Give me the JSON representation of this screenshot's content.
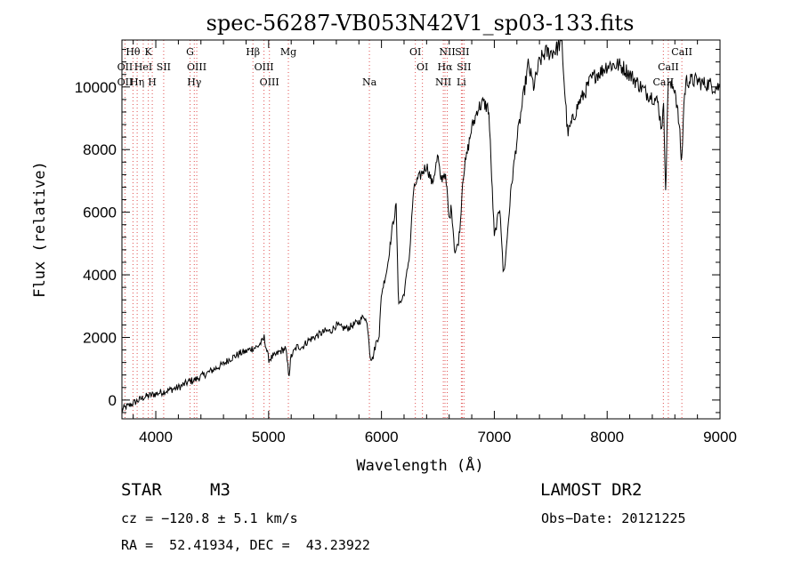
{
  "chart_data": {
    "type": "line",
    "title": "spec-56287-VB053N42V1_sp03-133.fits",
    "xlabel": "Wavelength (Å)",
    "ylabel": "Flux (relative)",
    "xlim": [
      3700,
      9000
    ],
    "ylim": [
      -600,
      11500
    ],
    "xticks": [
      4000,
      5000,
      6000,
      7000,
      8000,
      9000
    ],
    "yticks": [
      0,
      2000,
      4000,
      6000,
      8000,
      10000
    ],
    "line_color": "#000000",
    "marker_color": "#e05050",
    "series": [
      {
        "x": [
          3700,
          3750,
          3800,
          3850,
          3900,
          3950,
          4000,
          4050,
          4100,
          4150,
          4200,
          4250,
          4300,
          4350,
          4400,
          4450,
          4500,
          4550,
          4600,
          4650,
          4700,
          4750,
          4800,
          4850,
          4900,
          4950,
          4960,
          5000,
          5050,
          5100,
          5150,
          5180,
          5200,
          5250,
          5300,
          5350,
          5400,
          5450,
          5500,
          5550,
          5600,
          5650,
          5700,
          5750,
          5800,
          5850,
          5880,
          5900,
          5920,
          5950,
          5980,
          6000,
          6050,
          6100,
          6130,
          6150,
          6170,
          6200,
          6250,
          6280,
          6300,
          6350,
          6400,
          6450,
          6500,
          6520,
          6540,
          6560,
          6580,
          6600,
          6620,
          6650,
          6680,
          6700,
          6720,
          6750,
          6800,
          6830,
          6850,
          6900,
          6950,
          7000,
          7050,
          7080,
          7100,
          7120,
          7150,
          7200,
          7250,
          7300,
          7350,
          7400,
          7450,
          7500,
          7550,
          7580,
          7600,
          7620,
          7650,
          7700,
          7750,
          7800,
          7850,
          7900,
          7950,
          8000,
          8050,
          8100,
          8150,
          8200,
          8250,
          8300,
          8350,
          8400,
          8450,
          8480,
          8500,
          8520,
          8540,
          8560,
          8600,
          8640,
          8660,
          8680,
          8700,
          8750,
          8800,
          8850,
          8900,
          8950,
          9000
        ],
        "y": [
          -300,
          -200,
          -100,
          0,
          100,
          150,
          200,
          250,
          300,
          350,
          400,
          500,
          600,
          650,
          750,
          850,
          950,
          1050,
          1150,
          1300,
          1400,
          1500,
          1550,
          1650,
          1700,
          1900,
          2000,
          1300,
          1400,
          1550,
          1650,
          800,
          1400,
          1700,
          1700,
          1900,
          2000,
          2100,
          2200,
          2200,
          2400,
          2300,
          2300,
          2400,
          2500,
          2700,
          2300,
          1400,
          1300,
          1800,
          2100,
          3400,
          4200,
          5600,
          6200,
          3200,
          3100,
          3400,
          4700,
          6500,
          6900,
          7200,
          7500,
          6900,
          7800,
          7100,
          7100,
          7300,
          6700,
          5700,
          6200,
          4700,
          5000,
          5700,
          7100,
          7700,
          8700,
          9000,
          9300,
          9500,
          9300,
          5200,
          6200,
          4000,
          4500,
          5500,
          6800,
          8300,
          9500,
          10700,
          10000,
          10800,
          11100,
          11100,
          11200,
          11400,
          11300,
          10100,
          8500,
          9000,
          9500,
          9800,
          10200,
          10400,
          10500,
          10700,
          10700,
          10700,
          10600,
          10400,
          10200,
          10000,
          9800,
          9700,
          9500,
          8700,
          9300,
          6600,
          10300,
          10000,
          10000,
          8700,
          7500,
          9500,
          10200,
          10200,
          10200,
          10100,
          10100,
          10000,
          10000
        ]
      }
    ],
    "spectral_lines": [
      {
        "name": "Hθ",
        "wl": 3798,
        "row": 1
      },
      {
        "name": "K",
        "wl": 3934,
        "row": 1
      },
      {
        "name": "OII",
        "wl": 3727,
        "row": 2
      },
      {
        "name": "HeI",
        "wl": 3889,
        "row": 2
      },
      {
        "name": "SII",
        "wl": 4070,
        "row": 2
      },
      {
        "name": "OII",
        "wl": 3727,
        "row": 3
      },
      {
        "name": "Hη",
        "wl": 3835,
        "row": 3
      },
      {
        "name": "H",
        "wl": 3969,
        "row": 3
      },
      {
        "name": "G",
        "wl": 4304,
        "row": 1
      },
      {
        "name": "OIII",
        "wl": 4363,
        "row": 2
      },
      {
        "name": "Hγ",
        "wl": 4341,
        "row": 3
      },
      {
        "name": "Hβ",
        "wl": 4861,
        "row": 1
      },
      {
        "name": "Mg",
        "wl": 5175,
        "row": 1
      },
      {
        "name": "OIII",
        "wl": 4959,
        "row": 2
      },
      {
        "name": "OIII",
        "wl": 5007,
        "row": 3
      },
      {
        "name": "Na",
        "wl": 5893,
        "row": 3
      },
      {
        "name": "OI",
        "wl": 6300,
        "row": 1
      },
      {
        "name": "OI",
        "wl": 6363,
        "row": 2
      },
      {
        "name": "NII",
        "wl": 6583,
        "row": 1
      },
      {
        "name": "SII",
        "wl": 6716,
        "row": 1
      },
      {
        "name": "Hα",
        "wl": 6563,
        "row": 2
      },
      {
        "name": "SII",
        "wl": 6731,
        "row": 2
      },
      {
        "name": "NII",
        "wl": 6548,
        "row": 3
      },
      {
        "name": "Li",
        "wl": 6708,
        "row": 3
      },
      {
        "name": "CaII",
        "wl": 8662,
        "row": 1
      },
      {
        "name": "CaII",
        "wl": 8542,
        "row": 2
      },
      {
        "name": "CaII",
        "wl": 8498,
        "row": 3
      }
    ]
  },
  "info": {
    "class_label": "STAR",
    "subclass": "M3",
    "survey": "LAMOST DR2",
    "cz": "cz = −120.8 ± 5.1 km/s",
    "obs_date": "Obs−Date: 20121225",
    "coords": "RA =  52.41934, DEC =  43.23922"
  }
}
